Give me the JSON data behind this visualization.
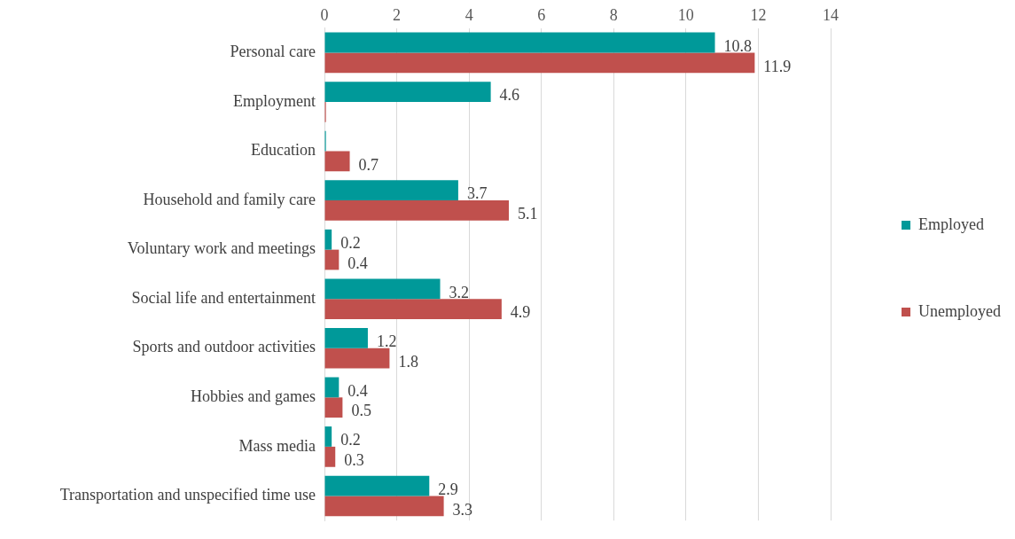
{
  "chart_data": {
    "type": "bar",
    "orientation": "horizontal",
    "categories": [
      "Personal care",
      "Employment",
      "Education",
      "Household and family care",
      "Voluntary work and meetings",
      "Social life and entertainment",
      "Sports and outdoor activities",
      "Hobbies and games",
      "Mass media",
      "Transportation and unspecified time use"
    ],
    "series": [
      {
        "name": "Employed",
        "color": "#009999",
        "values": [
          10.8,
          4.6,
          0.04,
          3.7,
          0.2,
          3.2,
          1.2,
          0.4,
          0.2,
          2.9
        ],
        "value_labels": [
          "10.8",
          "4.6",
          null,
          "3.7",
          "0.2",
          "3.2",
          "1.2",
          "0.4",
          "0.2",
          "2.9"
        ]
      },
      {
        "name": "Unemployed",
        "color": "#c0504d",
        "values": [
          11.9,
          0.04,
          0.7,
          5.1,
          0.4,
          4.9,
          1.8,
          0.5,
          0.3,
          3.3
        ],
        "value_labels": [
          "11.9",
          null,
          "0.7",
          "5.1",
          "0.4",
          "4.9",
          "1.8",
          "0.5",
          "0.3",
          "3.3"
        ]
      }
    ],
    "xlim": [
      0,
      14
    ],
    "xticks": [
      0,
      2,
      4,
      6,
      8,
      10,
      12,
      14
    ],
    "grid": "x",
    "legend": "right"
  }
}
